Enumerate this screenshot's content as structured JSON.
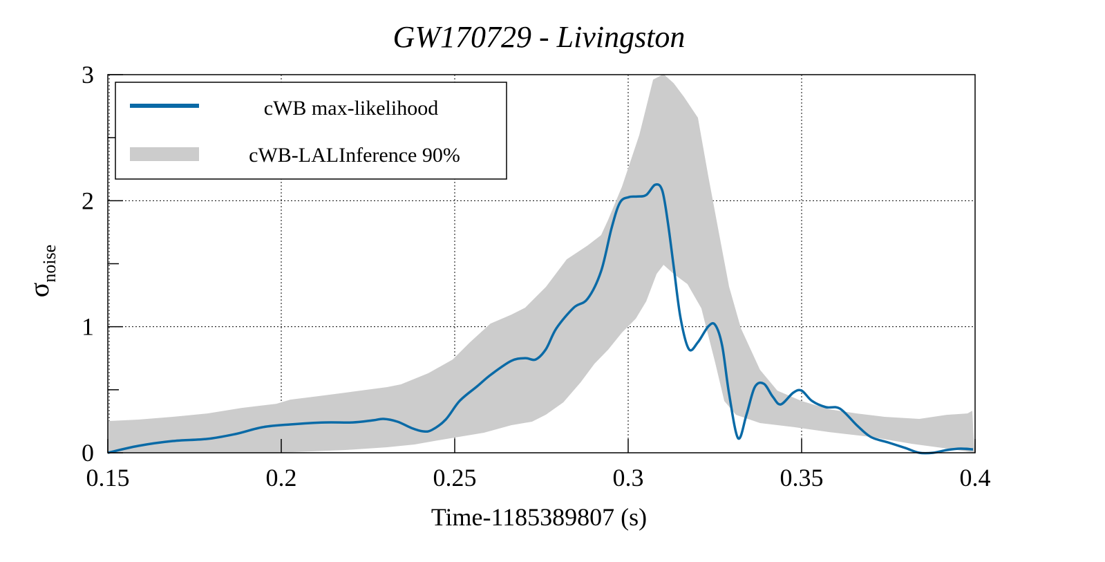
{
  "chart_data": {
    "type": "line",
    "title": "GW170729 - Livingston",
    "xlabel": "Time-1185389807 (s)",
    "ylabel": "σ",
    "ylabel_subscript": "noise",
    "xlim": [
      0.15,
      0.4
    ],
    "ylim": [
      0,
      3
    ],
    "xticks": [
      0.15,
      0.2,
      0.25,
      0.3,
      0.35,
      0.4
    ],
    "xtick_labels": [
      "0.15",
      "0.2",
      "0.25",
      "0.3",
      "0.35",
      "0.4"
    ],
    "yticks": [
      0,
      1,
      2,
      3
    ],
    "ytick_labels": [
      "0",
      "1",
      "2",
      "3"
    ],
    "yminor_ticks": [
      0.5,
      1.5,
      2.5
    ],
    "grid": true,
    "legend_position": "top-left",
    "colors": {
      "line": "#0a6aa6",
      "band": "#cccccc"
    },
    "series": [
      {
        "name": "cWB max-likelihood",
        "kind": "line",
        "x": [
          0.15,
          0.1588,
          0.1687,
          0.1787,
          0.1867,
          0.1946,
          0.2026,
          0.2126,
          0.2205,
          0.2265,
          0.2295,
          0.2335,
          0.2375,
          0.2409,
          0.2434,
          0.2474,
          0.2514,
          0.2564,
          0.2604,
          0.2663,
          0.2703,
          0.2733,
          0.2763,
          0.2793,
          0.2843,
          0.2883,
          0.2922,
          0.2952,
          0.2976,
          0.3002,
          0.3026,
          0.3052,
          0.3078,
          0.3098,
          0.3114,
          0.3131,
          0.3151,
          0.3175,
          0.3201,
          0.3231,
          0.3251,
          0.3271,
          0.3291,
          0.3317,
          0.3341,
          0.3365,
          0.3391,
          0.3417,
          0.344,
          0.3476,
          0.35,
          0.353,
          0.357,
          0.361,
          0.3659,
          0.3699,
          0.3749,
          0.3799,
          0.3839,
          0.3879,
          0.3919,
          0.3958,
          0.3994
        ],
        "y": [
          0.0,
          0.055,
          0.093,
          0.11,
          0.148,
          0.203,
          0.225,
          0.241,
          0.241,
          0.258,
          0.269,
          0.247,
          0.197,
          0.17,
          0.181,
          0.263,
          0.411,
          0.526,
          0.619,
          0.729,
          0.751,
          0.74,
          0.822,
          0.987,
          1.151,
          1.222,
          1.441,
          1.781,
          1.984,
          2.028,
          2.033,
          2.045,
          2.127,
          2.083,
          1.836,
          1.48,
          1.069,
          0.822,
          0.877,
          1.003,
          1.014,
          0.85,
          0.466,
          0.115,
          0.302,
          0.521,
          0.548,
          0.444,
          0.384,
          0.477,
          0.493,
          0.411,
          0.362,
          0.351,
          0.219,
          0.126,
          0.082,
          0.038,
          0.0,
          0.0,
          0.022,
          0.033,
          0.027
        ]
      },
      {
        "name": "cWB-LALInference 90%",
        "kind": "band",
        "upper": {
          "x": [
            0.15,
            0.1588,
            0.1687,
            0.1787,
            0.1886,
            0.1986,
            0.2026,
            0.2106,
            0.2185,
            0.2305,
            0.2345,
            0.2424,
            0.2494,
            0.2544,
            0.2603,
            0.2663,
            0.2703,
            0.2763,
            0.2823,
            0.2883,
            0.2922,
            0.2942,
            0.2982,
            0.3032,
            0.3072,
            0.3102,
            0.3131,
            0.3161,
            0.3201,
            0.3231,
            0.3261,
            0.3291,
            0.3325,
            0.338,
            0.343,
            0.35,
            0.358,
            0.3659,
            0.3739,
            0.3839,
            0.3918,
            0.3978,
            0.3992
          ],
          "y": [
            0.252,
            0.263,
            0.285,
            0.312,
            0.356,
            0.389,
            0.422,
            0.449,
            0.477,
            0.521,
            0.543,
            0.631,
            0.74,
            0.877,
            1.025,
            1.096,
            1.151,
            1.316,
            1.535,
            1.645,
            1.727,
            1.847,
            2.111,
            2.522,
            2.961,
            3.004,
            2.933,
            2.823,
            2.659,
            2.193,
            1.754,
            1.316,
            0.987,
            0.658,
            0.493,
            0.411,
            0.345,
            0.312,
            0.285,
            0.269,
            0.301,
            0.312,
            0.334
          ]
        },
        "lower": {
          "x": [
            0.15,
            0.1986,
            0.2185,
            0.2305,
            0.2384,
            0.2464,
            0.2584,
            0.2663,
            0.2723,
            0.2763,
            0.2813,
            0.2863,
            0.2903,
            0.2942,
            0.2982,
            0.3022,
            0.3052,
            0.3082,
            0.3102,
            0.3131,
            0.3171,
            0.3211,
            0.3251,
            0.3277,
            0.3311,
            0.338,
            0.348,
            0.358,
            0.3699,
            0.3819,
            0.3938,
            0.3998
          ],
          "y": [
            0.0,
            0.0,
            0.022,
            0.044,
            0.066,
            0.104,
            0.159,
            0.219,
            0.247,
            0.302,
            0.4,
            0.559,
            0.707,
            0.817,
            0.954,
            1.064,
            1.201,
            1.42,
            1.491,
            1.42,
            1.338,
            1.146,
            0.713,
            0.411,
            0.301,
            0.236,
            0.203,
            0.164,
            0.126,
            0.071,
            0.027,
            0.0
          ]
        }
      }
    ]
  }
}
